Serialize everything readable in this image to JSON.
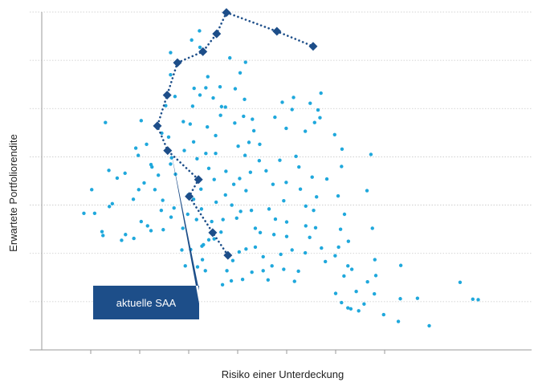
{
  "chart_data": {
    "type": "scatter",
    "title": "",
    "xlabel": "Risiko einer Unterdeckung",
    "ylabel": "Erwartete Portfoliorendite",
    "xlim": [
      0,
      10
    ],
    "ylim": [
      0,
      7
    ],
    "x_ticks": [
      1,
      2,
      3,
      4,
      5,
      6,
      7
    ],
    "y_gridlines": [
      1,
      2,
      3,
      4,
      5,
      6,
      7
    ],
    "grid": "horizontal, dotted",
    "legend": "none",
    "colors": {
      "cloud": "#1fa8dc",
      "frontier": "#1d4e89",
      "callout": "#1d4e89",
      "grid": "#c8c8c8",
      "axis": "#9a9a9a"
    },
    "series": [
      {
        "role": "portfolio-cloud",
        "marker": "dot",
        "points": [
          [
            0.86,
            2.83
          ],
          [
            1.08,
            2.83
          ],
          [
            1.25,
            2.37
          ],
          [
            1.23,
            2.45
          ],
          [
            1.44,
            3.03
          ],
          [
            1.63,
            2.27
          ],
          [
            2.16,
            2.57
          ],
          [
            1.02,
            3.32
          ],
          [
            1.37,
            3.72
          ],
          [
            1.54,
            3.56
          ],
          [
            1.87,
            3.12
          ],
          [
            1.7,
            3.66
          ],
          [
            2.31,
            3.32
          ],
          [
            2.09,
            3.46
          ],
          [
            2.23,
            3.84
          ],
          [
            1.97,
            4.03
          ],
          [
            1.98,
            3.32
          ],
          [
            2.25,
            3.79
          ],
          [
            2.03,
            2.66
          ],
          [
            1.3,
            4.71
          ],
          [
            1.38,
            2.97
          ],
          [
            1.71,
            2.39
          ],
          [
            1.88,
            2.31
          ],
          [
            1.92,
            4.18
          ],
          [
            2.14,
            4.26
          ],
          [
            2.38,
            3.62
          ],
          [
            2.03,
            4.75
          ],
          [
            2.36,
            4.6
          ],
          [
            2.48,
            2.49
          ],
          [
            2.53,
            5.06
          ],
          [
            2.45,
            4.49
          ],
          [
            2.59,
            4.41
          ],
          [
            2.89,
            4.73
          ],
          [
            2.91,
            4.13
          ],
          [
            2.73,
            3.64
          ],
          [
            2.63,
            3.85
          ],
          [
            2.44,
            2.89
          ],
          [
            2.23,
            2.47
          ],
          [
            2.47,
            3.1
          ],
          [
            2.64,
            2.75
          ],
          [
            2.7,
            2.94
          ],
          [
            2.65,
            3.98
          ],
          [
            2.99,
            3.21
          ],
          [
            2.72,
            5.25
          ],
          [
            2.63,
            5.7
          ],
          [
            2.63,
            6.16
          ],
          [
            3.06,
            6.42
          ],
          [
            3.22,
            6.61
          ],
          [
            3.23,
            6.27
          ],
          [
            3.39,
            5.66
          ],
          [
            3.11,
            5.42
          ],
          [
            3.23,
            5.28
          ],
          [
            3.35,
            5.43
          ],
          [
            3.08,
            5.05
          ],
          [
            3.03,
            4.68
          ],
          [
            3.1,
            4.31
          ],
          [
            3.17,
            3.96
          ],
          [
            3.19,
            3.55
          ],
          [
            3.1,
            3.12
          ],
          [
            2.98,
            2.81
          ],
          [
            2.88,
            2.52
          ],
          [
            3.16,
            2.7
          ],
          [
            3.26,
            2.92
          ],
          [
            3.25,
            3.33
          ],
          [
            3.41,
            3.76
          ],
          [
            3.35,
            4.07
          ],
          [
            3.38,
            4.62
          ],
          [
            3.55,
            4.44
          ],
          [
            3.55,
            4.07
          ],
          [
            3.52,
            3.53
          ],
          [
            3.56,
            3.06
          ],
          [
            3.47,
            2.66
          ],
          [
            3.27,
            2.15
          ],
          [
            3.28,
            1.87
          ],
          [
            3.34,
            1.64
          ],
          [
            3.18,
            1.72
          ],
          [
            2.93,
            1.74
          ],
          [
            2.86,
            2.07
          ],
          [
            3.04,
            2.08
          ],
          [
            3.3,
            2.18
          ],
          [
            3.52,
            2.3
          ],
          [
            3.41,
            2.28
          ],
          [
            3.66,
            2.44
          ],
          [
            3.7,
            2.7
          ],
          [
            3.75,
            3.21
          ],
          [
            3.76,
            3.7
          ],
          [
            3.92,
            3.43
          ],
          [
            3.88,
            3.0
          ],
          [
            3.98,
            2.73
          ],
          [
            4.06,
            2.87
          ],
          [
            4.04,
            3.55
          ],
          [
            4.15,
            4.03
          ],
          [
            4.23,
            4.3
          ],
          [
            4.01,
            4.22
          ],
          [
            3.65,
            4.86
          ],
          [
            3.75,
            5.03
          ],
          [
            3.95,
            5.41
          ],
          [
            4.05,
            5.74
          ],
          [
            4.14,
            5.19
          ],
          [
            4.16,
            5.96
          ],
          [
            3.84,
            6.05
          ],
          [
            3.64,
            5.45
          ],
          [
            3.5,
            5.22
          ],
          [
            3.67,
            5.04
          ],
          [
            3.94,
            4.7
          ],
          [
            4.12,
            4.84
          ],
          [
            4.3,
            4.78
          ],
          [
            4.33,
            4.54
          ],
          [
            4.45,
            4.26
          ],
          [
            4.44,
            3.92
          ],
          [
            4.26,
            3.68
          ],
          [
            4.17,
            3.3
          ],
          [
            4.28,
            2.89
          ],
          [
            4.36,
            2.52
          ],
          [
            4.46,
            2.43
          ],
          [
            4.36,
            2.13
          ],
          [
            4.17,
            2.09
          ],
          [
            4.03,
            2.03
          ],
          [
            3.9,
            1.85
          ],
          [
            3.78,
            1.64
          ],
          [
            3.69,
            1.35
          ],
          [
            3.87,
            1.43
          ],
          [
            4.1,
            1.46
          ],
          [
            4.29,
            1.61
          ],
          [
            4.52,
            1.64
          ],
          [
            4.62,
            1.45
          ],
          [
            4.7,
            1.74
          ],
          [
            4.52,
            1.93
          ],
          [
            4.74,
            2.39
          ],
          [
            4.77,
            2.71
          ],
          [
            4.64,
            2.92
          ],
          [
            4.72,
            3.43
          ],
          [
            4.58,
            3.71
          ],
          [
            4.86,
            3.93
          ],
          [
            4.99,
            3.47
          ],
          [
            4.94,
            3.09
          ],
          [
            5.0,
            2.65
          ],
          [
            5.0,
            2.35
          ],
          [
            4.88,
            1.98
          ],
          [
            5.11,
            2.07
          ],
          [
            4.94,
            1.67
          ],
          [
            5.16,
            1.42
          ],
          [
            5.24,
            1.63
          ],
          [
            5.38,
            2.01
          ],
          [
            5.47,
            2.33
          ],
          [
            5.39,
            2.57
          ],
          [
            5.39,
            2.98
          ],
          [
            5.28,
            3.33
          ],
          [
            5.25,
            3.79
          ],
          [
            5.52,
            3.58
          ],
          [
            5.61,
            3.17
          ],
          [
            5.55,
            2.89
          ],
          [
            5.59,
            2.53
          ],
          [
            5.71,
            2.11
          ],
          [
            5.79,
            1.83
          ],
          [
            5.99,
            1.95
          ],
          [
            6.17,
            1.53
          ],
          [
            6.25,
            1.74
          ],
          [
            6.33,
            1.67
          ],
          [
            6.06,
            2.13
          ],
          [
            6.26,
            2.25
          ],
          [
            6.1,
            2.5
          ],
          [
            6.18,
            2.81
          ],
          [
            6.05,
            3.19
          ],
          [
            5.82,
            3.54
          ],
          [
            6.12,
            3.8
          ],
          [
            6.13,
            4.16
          ],
          [
            5.98,
            4.46
          ],
          [
            5.68,
            4.81
          ],
          [
            5.38,
            4.53
          ],
          [
            5.48,
            5.11
          ],
          [
            5.64,
            4.97
          ],
          [
            5.7,
            5.32
          ],
          [
            4.99,
            4.59
          ],
          [
            4.76,
            4.82
          ],
          [
            4.91,
            5.13
          ],
          [
            5.11,
            4.98
          ],
          [
            5.14,
            5.23
          ],
          [
            5.57,
            4.71
          ],
          [
            5.19,
            4.01
          ],
          [
            6.72,
            4.05
          ],
          [
            6.64,
            3.3
          ],
          [
            6.75,
            2.52
          ],
          [
            6.8,
            1.87
          ],
          [
            6.82,
            1.54
          ],
          [
            6.79,
            1.16
          ],
          [
            6.65,
            1.41
          ],
          [
            6.42,
            1.21
          ],
          [
            6.58,
            0.95
          ],
          [
            6.47,
            0.81
          ],
          [
            6.12,
            0.98
          ],
          [
            6.0,
            1.17
          ],
          [
            6.25,
            0.87
          ],
          [
            6.31,
            0.85
          ],
          [
            6.98,
            0.73
          ],
          [
            7.32,
            1.06
          ],
          [
            7.33,
            1.75
          ],
          [
            7.28,
            0.59
          ],
          [
            7.91,
            0.5
          ],
          [
            7.67,
            1.07
          ],
          [
            8.54,
            1.4
          ],
          [
            8.8,
            1.05
          ],
          [
            8.91,
            1.04
          ]
        ]
      },
      {
        "role": "efficient-frontier",
        "marker": "diamond",
        "line": "dotted",
        "points": [
          [
            3.8,
            1.96
          ],
          [
            3.49,
            2.43
          ],
          [
            3.01,
            3.18
          ],
          [
            3.2,
            3.53
          ],
          [
            2.57,
            4.13
          ],
          [
            2.36,
            4.64
          ],
          [
            2.56,
            5.28
          ],
          [
            2.77,
            5.95
          ],
          [
            3.29,
            6.18
          ],
          [
            3.57,
            6.55
          ],
          [
            3.77,
            6.99
          ],
          [
            4.8,
            6.6
          ],
          [
            5.54,
            6.29
          ]
        ]
      }
    ],
    "annotations": [
      {
        "text": "aktuelle SAA",
        "points_to": [
          2.57,
          4.13
        ]
      }
    ]
  }
}
